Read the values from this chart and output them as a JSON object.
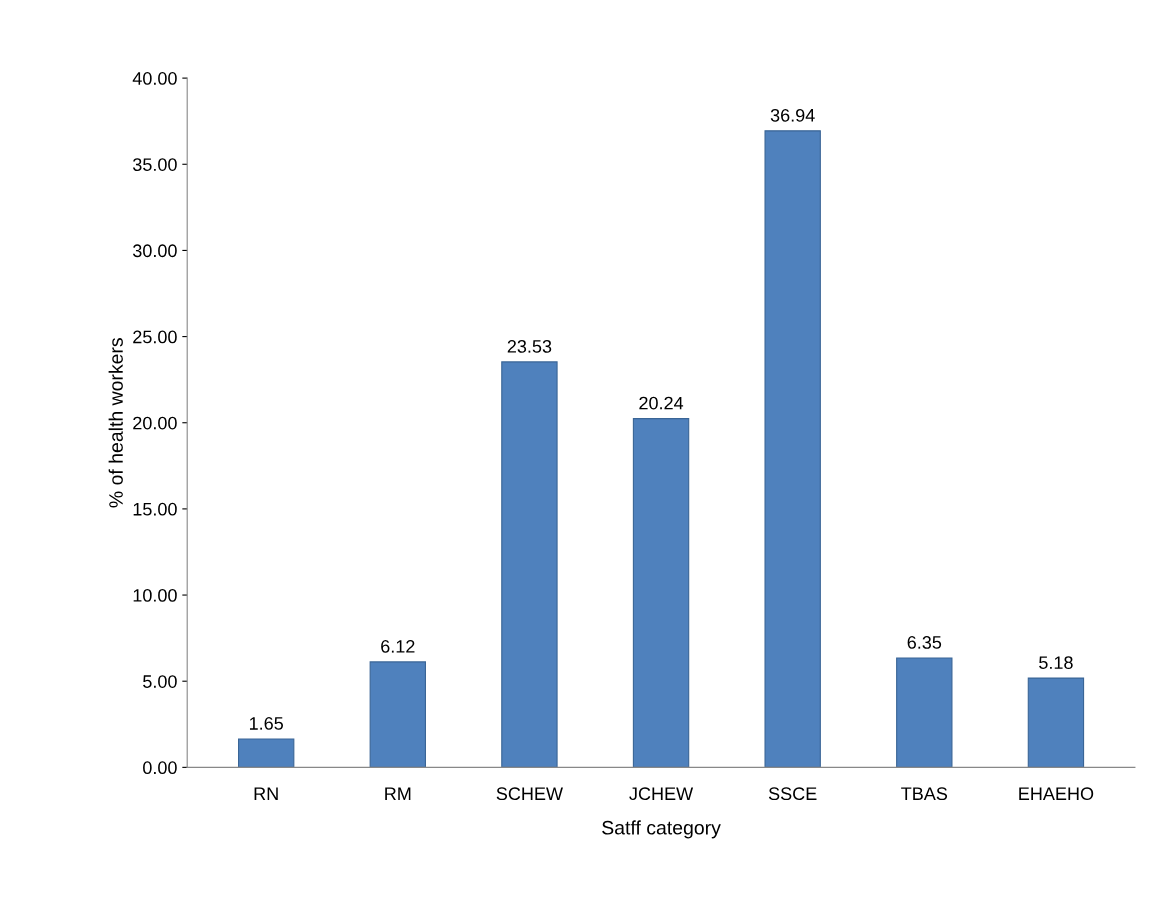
{
  "chart_data": {
    "type": "bar",
    "categories": [
      "RN",
      "RM",
      "SCHEW",
      "JCHEW",
      "SSCE",
      "TBAS",
      "EHAEHO"
    ],
    "values": [
      1.65,
      6.12,
      23.53,
      20.24,
      36.94,
      6.35,
      5.18
    ],
    "color": "#4f81bd",
    "xlabel": "Satff category",
    "ylabel": "% of health workers",
    "ylim": [
      0,
      40
    ],
    "yticks": [
      {
        "value": 0,
        "label": "0.00"
      },
      {
        "value": 5,
        "label": "5.00"
      },
      {
        "value": 10,
        "label": "10.00"
      },
      {
        "value": 15,
        "label": "15.00"
      },
      {
        "value": 20,
        "label": "20.00"
      },
      {
        "value": 25,
        "label": "25.00"
      },
      {
        "value": 30,
        "label": "30.00"
      },
      {
        "value": 35,
        "label": "35.00"
      },
      {
        "value": 40,
        "label": "40.00"
      }
    ],
    "data_labels": true,
    "grid": false,
    "legend": false
  }
}
